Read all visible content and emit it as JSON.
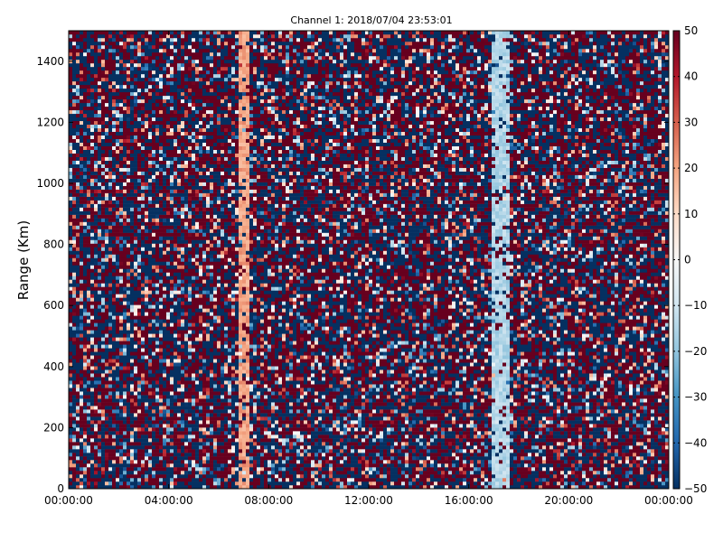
{
  "chart_data": {
    "type": "heatmap",
    "title": "Channel 1: 2018/07/04 23:53:01",
    "xlabel": "",
    "ylabel": "Range (Km)",
    "x_ticks": [
      "00:00:00",
      "04:00:00",
      "08:00:00",
      "12:00:00",
      "16:00:00",
      "20:00:00",
      "00:00:00"
    ],
    "x_tick_hours": [
      0,
      4,
      8,
      12,
      16,
      20,
      24
    ],
    "xlim_hours": [
      0,
      24
    ],
    "y_ticks": [
      0,
      200,
      400,
      600,
      800,
      1000,
      1200,
      1400
    ],
    "ylim": [
      0,
      1500
    ],
    "colorbar": {
      "colormap": "RdBu_r",
      "range": [
        -50,
        50
      ],
      "ticks": [
        50,
        40,
        30,
        20,
        10,
        0,
        -10,
        -20,
        -30,
        -40,
        -50
      ],
      "tick_labels": [
        "50",
        "40",
        "30",
        "20",
        "10",
        "0",
        "−10",
        "−20",
        "−30",
        "−40",
        "−50"
      ]
    },
    "grid": false,
    "features": [
      {
        "time_hours": [
          6.8,
          7.3
        ],
        "range_km": [
          0,
          1500
        ],
        "value": 20
      },
      {
        "time_hours": [
          16.9,
          17.7
        ],
        "range_km": [
          0,
          1500
        ],
        "value": -15
      }
    ]
  }
}
